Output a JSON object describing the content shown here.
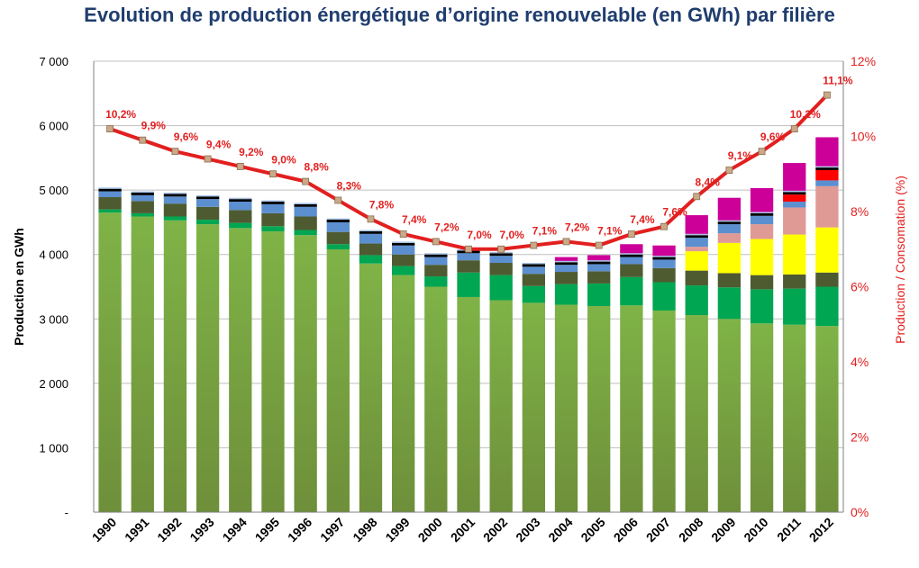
{
  "chart_data": {
    "type": "bar",
    "title": "Evolution de production énergétique d’origine renouvelable (en GWh) par filière",
    "ylabel": "Production en GWh",
    "y2label": "Production / Consomation (%)",
    "ylim": [
      0,
      7000
    ],
    "y2lim": [
      0,
      12
    ],
    "yticks": [
      "-",
      "1 000",
      "2 000",
      "3 000",
      "4 000",
      "5 000",
      "6 000",
      "7 000"
    ],
    "y2ticks": [
      "0%",
      "2%",
      "4%",
      "6%",
      "8%",
      "10%",
      "12%"
    ],
    "grid": true,
    "categories": [
      "1990",
      "1991",
      "1992",
      "1993",
      "1994",
      "1995",
      "1996",
      "1997",
      "1998",
      "1999",
      "2000",
      "2001",
      "2002",
      "2003",
      "2004",
      "2005",
      "2006",
      "2007",
      "2008",
      "2009",
      "2010",
      "2011",
      "2012"
    ],
    "series": [
      {
        "color": "#7fb347",
        "values": [
          4650,
          4590,
          4530,
          4470,
          4410,
          4360,
          4300,
          4080,
          3860,
          3680,
          3500,
          3340,
          3290,
          3250,
          3220,
          3200,
          3210,
          3130,
          3060,
          3000,
          2930,
          2910,
          2890
        ]
      },
      {
        "color": "#00a651",
        "values": [
          50,
          50,
          60,
          70,
          80,
          80,
          80,
          80,
          130,
          140,
          160,
          380,
          390,
          260,
          320,
          350,
          440,
          440,
          460,
          490,
          530,
          560,
          610
        ]
      },
      {
        "color": "#4e5b31",
        "values": [
          190,
          190,
          200,
          200,
          200,
          200,
          210,
          190,
          180,
          180,
          180,
          190,
          190,
          190,
          190,
          190,
          200,
          220,
          230,
          220,
          220,
          220,
          220
        ]
      },
      {
        "color": "#ffff00",
        "values": [
          0,
          0,
          0,
          0,
          0,
          0,
          0,
          0,
          0,
          0,
          0,
          0,
          0,
          0,
          0,
          0,
          0,
          0,
          300,
          470,
          560,
          620,
          700
        ]
      },
      {
        "color": "#e09a96",
        "values": [
          0,
          0,
          0,
          0,
          0,
          0,
          0,
          0,
          0,
          0,
          0,
          0,
          0,
          0,
          0,
          0,
          0,
          0,
          70,
          150,
          230,
          420,
          640
        ]
      },
      {
        "color": "#5b8fd0",
        "values": [
          90,
          90,
          110,
          120,
          130,
          140,
          150,
          150,
          150,
          140,
          120,
          110,
          110,
          110,
          110,
          110,
          110,
          130,
          140,
          140,
          130,
          90,
          90
        ]
      },
      {
        "color": "#ff0000",
        "values": [
          0,
          0,
          0,
          0,
          0,
          0,
          0,
          0,
          0,
          0,
          0,
          0,
          0,
          0,
          0,
          0,
          0,
          0,
          0,
          0,
          0,
          110,
          160
        ]
      },
      {
        "color": "#000000",
        "values": [
          40,
          40,
          40,
          40,
          40,
          40,
          40,
          40,
          40,
          40,
          40,
          40,
          40,
          40,
          40,
          40,
          40,
          40,
          40,
          40,
          40,
          40,
          40
        ]
      },
      {
        "color": "#a6c2e6",
        "values": [
          20,
          20,
          20,
          20,
          20,
          20,
          20,
          20,
          20,
          20,
          20,
          20,
          20,
          20,
          20,
          20,
          20,
          20,
          20,
          20,
          20,
          20,
          20
        ]
      },
      {
        "color": "#cc0099",
        "values": [
          0,
          0,
          0,
          0,
          0,
          0,
          0,
          0,
          0,
          0,
          0,
          0,
          0,
          0,
          60,
          80,
          140,
          160,
          290,
          350,
          370,
          430,
          450
        ]
      }
    ],
    "line": {
      "color": "#e21f1f",
      "values": [
        10.2,
        9.9,
        9.6,
        9.4,
        9.2,
        9.0,
        8.8,
        8.3,
        7.8,
        7.4,
        7.2,
        7.0,
        7.0,
        7.1,
        7.2,
        7.1,
        7.4,
        7.6,
        8.4,
        9.1,
        9.6,
        10.2,
        11.1
      ],
      "labels": [
        "10,2%",
        "9,9%",
        "9,6%",
        "9,4%",
        "9,2%",
        "9,0%",
        "8,8%",
        "8,3%",
        "7,8%",
        "7,4%",
        "7,2%",
        "7,0%",
        "7,0%",
        "7,1%",
        "7,2%",
        "7,1%",
        "7,4%",
        "7,6%",
        "8,4%",
        "9,1%",
        "9,6%",
        "10,2%",
        "11,1%"
      ]
    }
  }
}
